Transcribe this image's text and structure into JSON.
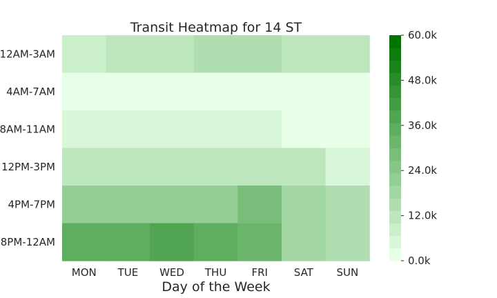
{
  "chart_data": {
    "type": "heatmap",
    "title": "Transit Heatmap for 14 ST",
    "xlabel": "Day of the Week",
    "ylabel": "",
    "x_categories": [
      "MON",
      "TUE",
      "WED",
      "THU",
      "FRI",
      "SAT",
      "SUN"
    ],
    "y_categories": [
      "12AM-3AM",
      "4AM-7AM",
      "8AM-11AM",
      "12PM-3PM",
      "4PM-7PM",
      "8PM-12AM"
    ],
    "values": [
      [
        7500,
        10500,
        10500,
        15000,
        15000,
        11000,
        11000
      ],
      [
        1000,
        1000,
        1000,
        1000,
        1000,
        1000,
        1000
      ],
      [
        4500,
        4500,
        4500,
        4500,
        4500,
        1500,
        1500
      ],
      [
        10000,
        10000,
        10000,
        10000,
        10000,
        10000,
        5500
      ],
      [
        21500,
        21500,
        21500,
        21500,
        28000,
        17000,
        14500
      ],
      [
        35000,
        35000,
        38000,
        35000,
        31000,
        17000,
        14500
      ]
    ],
    "colorbar": {
      "min": 0,
      "max": 60000,
      "ticks": [
        0,
        12000,
        24000,
        36000,
        48000,
        60000
      ],
      "tick_labels": [
        "0.0k",
        "12.0k",
        "24.0k",
        "36.0k",
        "48.0k",
        "60.0k"
      ],
      "levels": 18,
      "color_low": "#e6ffe6",
      "color_high": "#007300"
    }
  }
}
